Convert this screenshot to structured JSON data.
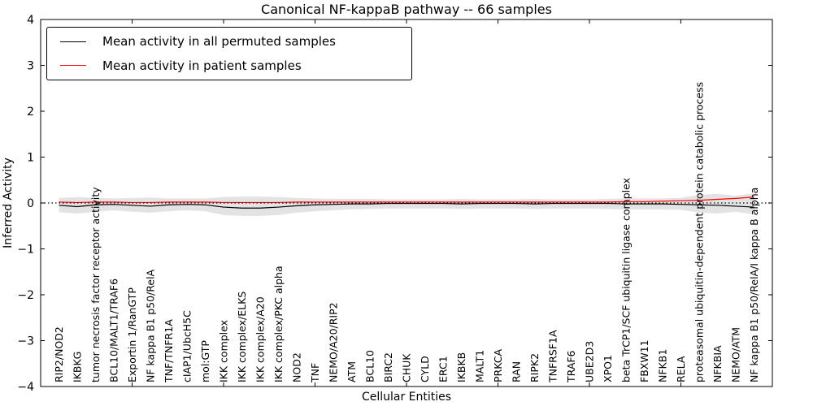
{
  "title": "Canonical NF-kappaB pathway -- 66 samples",
  "axes": {
    "ylabel": "Inferred Activity",
    "xlabel": "Cellular Entities",
    "yticks": [
      -4,
      -3,
      -2,
      -1,
      0,
      1,
      2,
      3,
      4
    ],
    "yticklabels": [
      "−4",
      "−3",
      "−2",
      "−1",
      "0",
      "1",
      "2",
      "3",
      "4"
    ],
    "ylim": [
      -4,
      4
    ],
    "xlim": [
      0,
      40
    ],
    "xticks": [
      5,
      10,
      15,
      20,
      25,
      30,
      35
    ]
  },
  "legend": {
    "items": [
      {
        "label": "Mean activity in all permuted samples",
        "color": "#000000"
      },
      {
        "label": "Mean activity in patient samples",
        "color": "#ff0000"
      }
    ]
  },
  "colors": {
    "permuted_line": "#000000",
    "patient_line": "#ff0000",
    "band_fill": "#e3e3e3",
    "zero_line": "#000000",
    "frame": "#000000"
  },
  "chart_data": {
    "type": "line",
    "title": "Canonical NF-kappaB pathway -- 66 samples",
    "xlabel": "Cellular Entities",
    "ylabel": "Inferred Activity",
    "ylim": [
      -4,
      4
    ],
    "grid": false,
    "legend_position": "upper left",
    "zero_reference_line": {
      "y": 0,
      "style": "dotted",
      "color": "#000000"
    },
    "categories": [
      "RIP2/NOD2",
      "IKBKG",
      "tumor necrosis factor receptor activity",
      "BCL10/MALT1/TRAF6",
      "Exportin 1/RanGTP",
      "NF kappa B1 p50/RelA",
      "TNF/TNFR1A",
      "cIAP1/UbcH5C",
      "mol:GTP",
      "IKK complex",
      "IKK complex/ELKS",
      "IKK complex/A20",
      "IKK complex/PKC alpha",
      "NOD2",
      "TNF",
      "NEMO/A20/RIP2",
      "ATM",
      "BCL10",
      "BIRC2",
      "CHUK",
      "CYLD",
      "ERC1",
      "IKBKB",
      "MALT1",
      "PRKCA",
      "RAN",
      "RIPK2",
      "TNFRSF1A",
      "TRAF6",
      "UBE2D3",
      "XPO1",
      "beta TrCP1/SCF ubiquitin ligase complex",
      "FBXW11",
      "NFKB1",
      "RELA",
      "proteasomal ubiquitin-dependent protein catabolic process",
      "NFKBIA",
      "NEMO/ATM",
      "NF kappa B1 p50/RelA/I kappa B alpha"
    ],
    "series": [
      {
        "name": "Mean activity in all permuted samples",
        "color": "#000000",
        "values": [
          -0.05,
          -0.08,
          -0.04,
          -0.03,
          -0.05,
          -0.07,
          -0.04,
          -0.03,
          -0.04,
          -0.09,
          -0.11,
          -0.11,
          -0.09,
          -0.06,
          -0.04,
          -0.03,
          -0.02,
          -0.02,
          -0.01,
          -0.01,
          -0.01,
          -0.01,
          -0.02,
          -0.01,
          -0.01,
          -0.01,
          -0.02,
          -0.01,
          -0.01,
          -0.01,
          -0.01,
          -0.02,
          -0.02,
          -0.02,
          -0.03,
          -0.04,
          -0.05,
          -0.07,
          -0.09
        ]
      },
      {
        "name": "Mean activity in patient samples",
        "color": "#ff0000",
        "values": [
          0.02,
          0.01,
          0.02,
          0.02,
          0.01,
          0.01,
          0.02,
          0.02,
          0.02,
          0.01,
          0.01,
          0.01,
          0.01,
          0.02,
          0.02,
          0.02,
          0.02,
          0.02,
          0.02,
          0.02,
          0.02,
          0.02,
          0.02,
          0.02,
          0.02,
          0.02,
          0.02,
          0.02,
          0.02,
          0.02,
          0.02,
          0.03,
          0.03,
          0.04,
          0.05,
          0.06,
          0.08,
          0.1,
          0.13
        ]
      }
    ],
    "band": {
      "name": "permuted activity range",
      "color": "#e3e3e3",
      "upper": [
        0.11,
        0.13,
        0.11,
        0.1,
        0.11,
        0.12,
        0.1,
        0.1,
        0.1,
        0.13,
        0.14,
        0.14,
        0.13,
        0.11,
        0.1,
        0.09,
        0.09,
        0.09,
        0.08,
        0.08,
        0.08,
        0.08,
        0.09,
        0.08,
        0.08,
        0.08,
        0.09,
        0.08,
        0.08,
        0.08,
        0.09,
        0.1,
        0.1,
        0.1,
        0.11,
        0.18,
        0.2,
        0.16,
        0.21
      ],
      "lower": [
        -0.2,
        -0.23,
        -0.19,
        -0.16,
        -0.19,
        -0.21,
        -0.18,
        -0.16,
        -0.18,
        -0.26,
        -0.28,
        -0.28,
        -0.26,
        -0.21,
        -0.18,
        -0.16,
        -0.14,
        -0.13,
        -0.12,
        -0.12,
        -0.12,
        -0.12,
        -0.13,
        -0.12,
        -0.12,
        -0.12,
        -0.13,
        -0.12,
        -0.12,
        -0.12,
        -0.13,
        -0.14,
        -0.14,
        -0.14,
        -0.15,
        -0.21,
        -0.23,
        -0.19,
        -0.25
      ]
    }
  }
}
